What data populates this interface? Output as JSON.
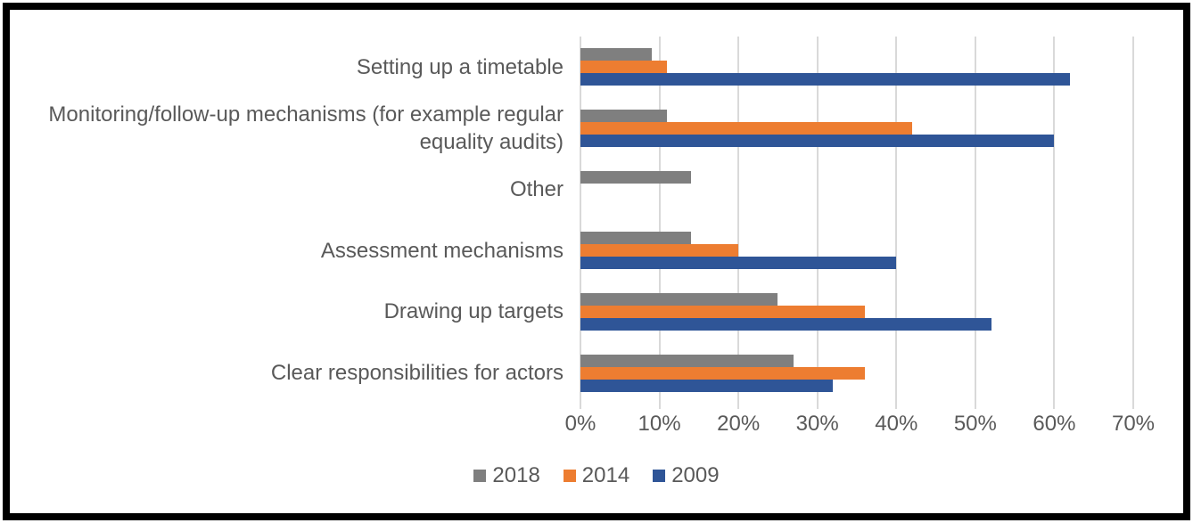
{
  "chart_data": {
    "type": "bar",
    "orientation": "horizontal",
    "title": "",
    "xlabel": "",
    "ylabel": "",
    "categories": [
      "Setting up a timetable",
      "Monitoring/follow-up mechanisms (for example regular equality audits)",
      "Other",
      "Assessment mechanisms",
      "Drawing up targets",
      "Clear responsibilities for actors"
    ],
    "series": [
      {
        "name": "2018",
        "color": "#7F7F7F",
        "values": [
          9,
          11,
          14,
          14,
          25,
          27
        ]
      },
      {
        "name": "2014",
        "color": "#ED7D31",
        "values": [
          11,
          42,
          0,
          20,
          36,
          36
        ]
      },
      {
        "name": "2009",
        "color": "#2F5597",
        "values": [
          62,
          60,
          0,
          40,
          52,
          32
        ]
      }
    ],
    "xlim": [
      0,
      70
    ],
    "x_tick_values": [
      0,
      10,
      20,
      30,
      40,
      50,
      60,
      70
    ],
    "x_tick_labels": [
      "0%",
      "10%",
      "20%",
      "30%",
      "40%",
      "50%",
      "60%",
      "70%"
    ],
    "grid": "vertical",
    "legend_position": "bottom-center",
    "colors": {
      "gridline": "#D9D9D9",
      "text": "#595959",
      "frame_border": "#000000",
      "background": "#FFFFFF"
    }
  }
}
